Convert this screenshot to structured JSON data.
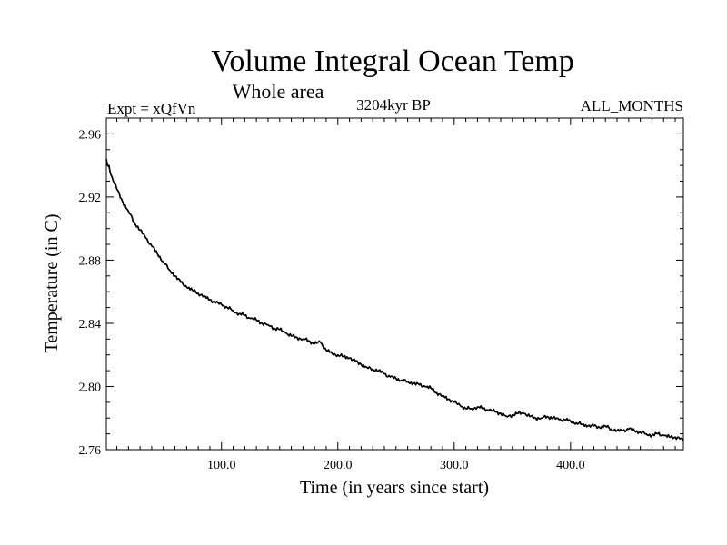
{
  "chart_data": {
    "type": "line",
    "title": "Volume Integral Ocean Temp",
    "subtitle": "Whole area",
    "left_label": "Expt = xQfVn",
    "center_label": "3204kyr BP",
    "right_label": "ALL_MONTHS",
    "xlabel": "Time (in years since start)",
    "ylabel": "Temperature (in C)",
    "xlim": [
      1,
      497
    ],
    "ylim": [
      2.76,
      2.97
    ],
    "xticks": [
      100,
      200,
      300,
      400
    ],
    "xtick_labels": [
      "100.0",
      "200.0",
      "300.0",
      "400.0"
    ],
    "yticks": [
      2.76,
      2.8,
      2.84,
      2.88,
      2.92,
      2.96
    ],
    "ytick_labels": [
      "2.76",
      "2.80",
      "2.84",
      "2.88",
      "2.92",
      "2.96"
    ],
    "grid": false,
    "series": [
      {
        "name": "Volume integral ocean temperature",
        "color": "#000000",
        "x": [
          1,
          5,
          10,
          15,
          20,
          25,
          30,
          35,
          40,
          45,
          50,
          55,
          60,
          65,
          70,
          75,
          80,
          85,
          90,
          95,
          100,
          105,
          110,
          115,
          120,
          125,
          130,
          135,
          140,
          145,
          150,
          155,
          160,
          165,
          170,
          175,
          180,
          185,
          190,
          195,
          200,
          205,
          210,
          215,
          220,
          225,
          230,
          235,
          240,
          245,
          250,
          255,
          260,
          265,
          270,
          275,
          280,
          285,
          290,
          295,
          300,
          305,
          310,
          315,
          320,
          325,
          330,
          335,
          340,
          345,
          350,
          355,
          360,
          365,
          370,
          375,
          380,
          385,
          390,
          395,
          400,
          405,
          410,
          415,
          420,
          425,
          430,
          435,
          440,
          445,
          450,
          455,
          460,
          465,
          470,
          475,
          480,
          485,
          490,
          495,
          497
        ],
        "y": [
          2.944,
          2.934,
          2.925,
          2.917,
          2.911,
          2.904,
          2.899,
          2.894,
          2.889,
          2.884,
          2.879,
          2.874,
          2.87,
          2.866,
          2.863,
          2.861,
          2.859,
          2.857,
          2.855,
          2.853,
          2.852,
          2.85,
          2.848,
          2.846,
          2.845,
          2.843,
          2.842,
          2.84,
          2.839,
          2.837,
          2.836,
          2.834,
          2.832,
          2.831,
          2.83,
          2.829,
          2.827,
          2.828,
          2.823,
          2.821,
          2.82,
          2.819,
          2.818,
          2.816,
          2.814,
          2.812,
          2.811,
          2.81,
          2.808,
          2.806,
          2.805,
          2.804,
          2.803,
          2.802,
          2.801,
          2.8,
          2.799,
          2.796,
          2.794,
          2.792,
          2.79,
          2.788,
          2.786,
          2.786,
          2.787,
          2.786,
          2.785,
          2.784,
          2.783,
          2.781,
          2.782,
          2.783,
          2.783,
          2.781,
          2.78,
          2.78,
          2.781,
          2.78,
          2.779,
          2.779,
          2.778,
          2.777,
          2.776,
          2.775,
          2.775,
          2.774,
          2.775,
          2.773,
          2.772,
          2.772,
          2.773,
          2.772,
          2.771,
          2.77,
          2.769,
          2.77,
          2.769,
          2.768,
          2.768,
          2.767,
          2.767
        ]
      }
    ]
  }
}
